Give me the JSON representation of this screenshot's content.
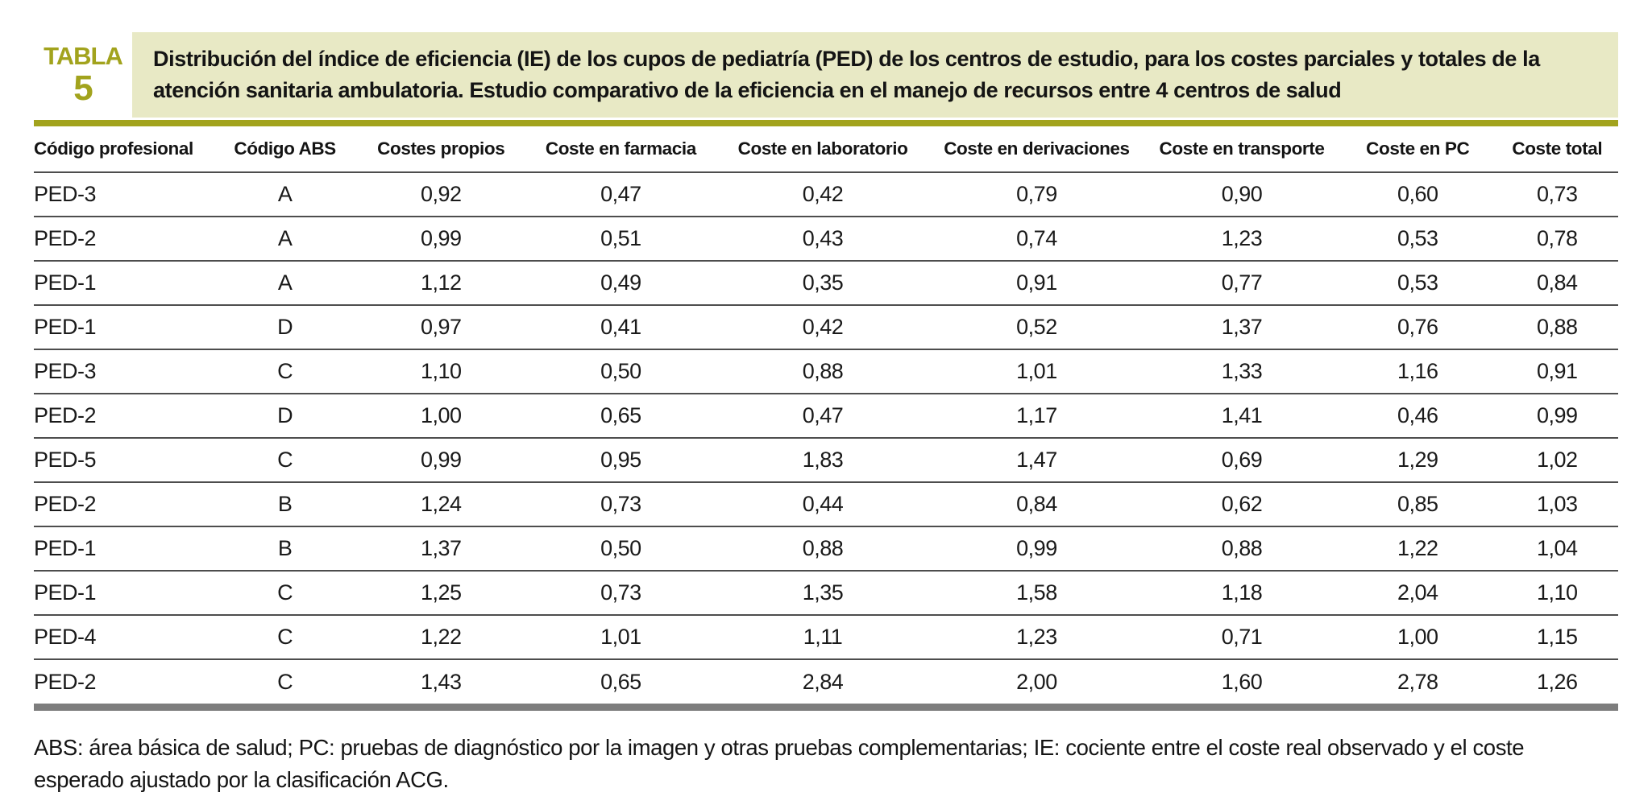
{
  "label": {
    "word": "TABLA",
    "number": "5"
  },
  "title": "Distribución del índice de eficiencia (IE) de los cupos de pediatría (PED) de los centros de estudio, para los costes parciales y totales de la atención sanitaria ambulatoria. Estudio comparativo de la eficiencia en el manejo de recursos entre 4 centros de salud",
  "table": {
    "columns": [
      "Código profesional",
      "Código ABS",
      "Costes propios",
      "Coste en farmacia",
      "Coste en laboratorio",
      "Coste en derivaciones",
      "Coste en transporte",
      "Coste en PC",
      "Coste total"
    ],
    "rows": [
      [
        "PED-3",
        "A",
        "0,92",
        "0,47",
        "0,42",
        "0,79",
        "0,90",
        "0,60",
        "0,73"
      ],
      [
        "PED-2",
        "A",
        "0,99",
        "0,51",
        "0,43",
        "0,74",
        "1,23",
        "0,53",
        "0,78"
      ],
      [
        "PED-1",
        "A",
        "1,12",
        "0,49",
        "0,35",
        "0,91",
        "0,77",
        "0,53",
        "0,84"
      ],
      [
        "PED-1",
        "D",
        "0,97",
        "0,41",
        "0,42",
        "0,52",
        "1,37",
        "0,76",
        "0,88"
      ],
      [
        "PED-3",
        "C",
        "1,10",
        "0,50",
        "0,88",
        "1,01",
        "1,33",
        "1,16",
        "0,91"
      ],
      [
        "PED-2",
        "D",
        "1,00",
        "0,65",
        "0,47",
        "1,17",
        "1,41",
        "0,46",
        "0,99"
      ],
      [
        "PED-5",
        "C",
        "0,99",
        "0,95",
        "1,83",
        "1,47",
        "0,69",
        "1,29",
        "1,02"
      ],
      [
        "PED-2",
        "B",
        "1,24",
        "0,73",
        "0,44",
        "0,84",
        "0,62",
        "0,85",
        "1,03"
      ],
      [
        "PED-1",
        "B",
        "1,37",
        "0,50",
        "0,88",
        "0,99",
        "0,88",
        "1,22",
        "1,04"
      ],
      [
        "PED-1",
        "C",
        "1,25",
        "0,73",
        "1,35",
        "1,58",
        "1,18",
        "2,04",
        "1,10"
      ],
      [
        "PED-4",
        "C",
        "1,22",
        "1,01",
        "1,11",
        "1,23",
        "0,71",
        "1,00",
        "1,15"
      ],
      [
        "PED-2",
        "C",
        "1,43",
        "0,65",
        "2,84",
        "2,00",
        "1,60",
        "2,78",
        "1,26"
      ]
    ]
  },
  "footnote": "ABS: área básica de salud; PC: pruebas de diagnóstico por la imagen y otras pruebas complementarias; IE: cociente entre el coste real observado y el coste esperado ajustado por la clasificación ACG.",
  "colors": {
    "accent_olive": "#a2a31d",
    "title_background": "#e8e9c5",
    "bottom_rule_gray": "#7d7d7d",
    "row_line": "#4d4d4d"
  }
}
